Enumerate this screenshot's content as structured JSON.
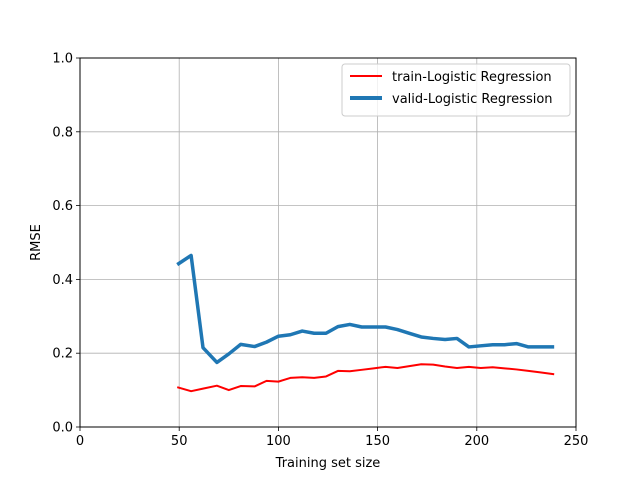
{
  "chart_data": {
    "type": "line",
    "title": "",
    "xlabel": "Training set size",
    "ylabel": "RMSE",
    "xlim": [
      0,
      250
    ],
    "ylim": [
      0.0,
      1.0
    ],
    "xticks": [
      "0",
      "50",
      "100",
      "150",
      "200",
      "250"
    ],
    "yticks": [
      "0.0",
      "0.2",
      "0.4",
      "0.6",
      "0.8",
      "1.0"
    ],
    "grid": true,
    "legend_position": "top-right",
    "series": [
      {
        "name": "train-Logistic Regression",
        "color": "#ff0000",
        "x": [
          49,
          56,
          62,
          69,
          75,
          81,
          88,
          94,
          100,
          106,
          112,
          118,
          124,
          130,
          136,
          142,
          148,
          154,
          160,
          166,
          172,
          178,
          184,
          190,
          196,
          202,
          208,
          214,
          220,
          226,
          232,
          239
        ],
        "y": [
          0.108,
          0.097,
          0.104,
          0.112,
          0.1,
          0.111,
          0.11,
          0.125,
          0.123,
          0.133,
          0.135,
          0.133,
          0.137,
          0.152,
          0.151,
          0.155,
          0.159,
          0.163,
          0.16,
          0.165,
          0.17,
          0.169,
          0.164,
          0.16,
          0.163,
          0.16,
          0.162,
          0.159,
          0.156,
          0.152,
          0.148,
          0.143
        ]
      },
      {
        "name": "valid-Logistic Regression",
        "color": "#1f77b4",
        "x": [
          49,
          56,
          62,
          69,
          75,
          81,
          88,
          94,
          100,
          106,
          112,
          118,
          124,
          130,
          136,
          142,
          148,
          154,
          160,
          166,
          172,
          178,
          184,
          190,
          196,
          202,
          208,
          214,
          220,
          226,
          232,
          239
        ],
        "y": [
          0.44,
          0.465,
          0.215,
          0.175,
          0.198,
          0.224,
          0.218,
          0.23,
          0.246,
          0.25,
          0.26,
          0.254,
          0.254,
          0.272,
          0.278,
          0.271,
          0.271,
          0.271,
          0.264,
          0.254,
          0.244,
          0.24,
          0.237,
          0.24,
          0.217,
          0.22,
          0.223,
          0.223,
          0.226,
          0.217,
          0.217,
          0.217
        ]
      }
    ]
  }
}
